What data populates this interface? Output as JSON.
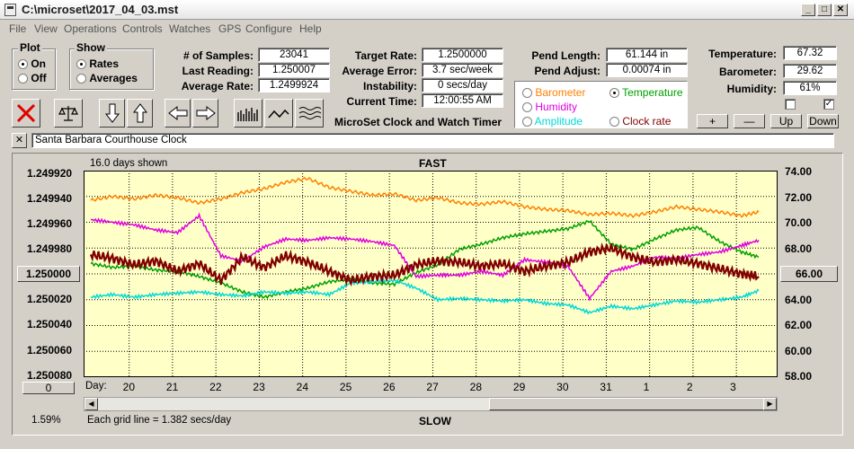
{
  "window": {
    "title": "C:\\microset\\2017_04_03.mst"
  },
  "menu": [
    "File",
    "View",
    "Operations",
    "Controls",
    "Watches",
    "GPS",
    "Configure",
    "Help"
  ],
  "plot_group": {
    "title": "Plot",
    "options": [
      "On",
      "Off"
    ]
  },
  "show_group": {
    "title": "Show",
    "options": [
      "Rates",
      "Averages"
    ]
  },
  "stats": {
    "samples_label": "# of Samples:",
    "samples": "23041",
    "last_reading_label": "Last Reading:",
    "last_reading": "1.250007",
    "average_rate_label": "Average Rate:",
    "average_rate": "1.2499924",
    "target_rate_label": "Target Rate:",
    "target_rate": "1.2500000",
    "average_error_label": "Average Error:",
    "average_error": "3.7 sec/week",
    "instability_label": "Instability:",
    "instability": "0 secs/day",
    "current_time_label": "Current Time:",
    "current_time": "12:00:55 AM",
    "pend_length_label": "Pend Length:",
    "pend_length": "61.144 in",
    "pend_adjust_label": "Pend Adjust:",
    "pend_adjust": "0.00074 in",
    "temperature_label": "Temperature:",
    "temperature": "67.32",
    "barometer_label": "Barometer:",
    "barometer": "29.62",
    "humidity_label": "Humidity:",
    "humidity": "61%"
  },
  "app_caption": "MicroSet Clock and Watch Timer",
  "overlay_options": [
    {
      "label": "Barometer",
      "color": "#ff8000"
    },
    {
      "label": "Temperature",
      "color": "#00a000"
    },
    {
      "label": "Humidity",
      "color": "#e000e0"
    },
    {
      "label": "Amplitude",
      "color": "#00d8d8"
    },
    {
      "label": "Clock rate",
      "color": "#800000"
    }
  ],
  "adjust_buttons": [
    "+",
    "—",
    "Up",
    "Down"
  ],
  "watch_name": "Santa Barbara Courthouse Clock",
  "close_symbol": "✕",
  "chart_data": {
    "type": "line",
    "title": "FAST",
    "bottom_title": "SLOW",
    "days_shown": "16.0 days shown",
    "grid_note": "Each grid line = 1.382 secs/day",
    "percent": "1.59%",
    "day_label": "Day:",
    "left_ticks": [
      "1.249920",
      "1.249940",
      "1.249960",
      "1.249980",
      "1.250000",
      "1.250020",
      "1.250040",
      "1.250060",
      "1.250080"
    ],
    "left_center": "1.250000",
    "left_bottom_button": "0",
    "right_ticks": [
      "74.00",
      "72.00",
      "70.00",
      "68.00",
      "66.00",
      "64.00",
      "62.00",
      "60.00",
      "58.00"
    ],
    "right_center": "66.00",
    "x_days": [
      "20",
      "21",
      "22",
      "23",
      "24",
      "25",
      "26",
      "27",
      "28",
      "29",
      "30",
      "31",
      "1",
      "2",
      "3"
    ],
    "ylim_left": [
      1.24992,
      1.25008
    ],
    "ylim_right": [
      58,
      74
    ],
    "series": [
      {
        "name": "Barometer",
        "color": "#ff8000",
        "x": [
          0,
          0.5,
          1,
          1.5,
          2,
          2.5,
          3,
          3.5,
          4,
          4.5,
          5,
          5.5,
          6,
          6.5,
          7,
          7.5,
          8,
          8.5,
          9,
          9.5,
          10,
          10.5,
          11,
          11.5,
          12,
          12.5,
          13,
          13.5,
          14,
          14.5,
          15,
          15.4
        ],
        "y": [
          71.7,
          72.0,
          71.8,
          72.1,
          71.9,
          71.5,
          71.8,
          72.3,
          72.6,
          73.1,
          73.4,
          72.7,
          72.4,
          72.1,
          72.2,
          71.7,
          71.9,
          71.5,
          71.4,
          71.6,
          71.2,
          71.0,
          70.9,
          70.6,
          70.7,
          70.5,
          70.8,
          71.2,
          71.0,
          70.8,
          70.5,
          70.8
        ]
      },
      {
        "name": "Temperature",
        "color": "#00a000",
        "x": [
          0,
          0.5,
          1,
          1.5,
          2,
          2.5,
          3,
          3.5,
          4,
          4.5,
          5,
          5.5,
          6,
          6.5,
          7,
          7.5,
          8,
          8.5,
          9,
          9.5,
          10,
          10.5,
          11,
          11.5,
          12,
          12.5,
          13,
          13.5,
          14,
          14.5,
          15,
          15.4
        ],
        "y": [
          66.8,
          66.5,
          66.6,
          66.3,
          66.2,
          65.8,
          65.3,
          64.6,
          64.2,
          64.6,
          64.9,
          65.4,
          65.6,
          65.3,
          65.2,
          66.1,
          66.7,
          67.9,
          68.3,
          68.8,
          69.1,
          69.3,
          69.5,
          70.1,
          68.3,
          67.9,
          68.7,
          69.4,
          69.6,
          68.5,
          67.7,
          67.3
        ]
      },
      {
        "name": "Humidity",
        "color": "#e000e0",
        "x": [
          0,
          0.5,
          1,
          1.5,
          2,
          2.5,
          3,
          3.5,
          4,
          4.5,
          5,
          5.5,
          6,
          6.5,
          7,
          7.5,
          8,
          8.5,
          9,
          9.5,
          10,
          10.5,
          11,
          11.5,
          12,
          12.5,
          13,
          13.5,
          14,
          14.5,
          15,
          15.4
        ],
        "y": [
          70.2,
          70.0,
          69.8,
          69.4,
          69.2,
          70.5,
          67.4,
          67.0,
          68.1,
          68.7,
          68.6,
          68.8,
          68.7,
          68.5,
          68.2,
          65.8,
          65.9,
          65.9,
          66.2,
          65.9,
          67.1,
          66.9,
          66.6,
          64.1,
          66.2,
          66.6,
          67.3,
          67.2,
          67.5,
          67.7,
          68.2,
          68.6
        ]
      },
      {
        "name": "Amplitude",
        "color": "#00d8d8",
        "x": [
          0,
          0.5,
          1,
          1.5,
          2,
          2.5,
          3,
          3.5,
          4,
          4.5,
          5,
          5.5,
          6,
          6.5,
          7,
          7.5,
          8,
          8.5,
          9,
          9.5,
          10,
          10.5,
          11,
          11.5,
          12,
          12.5,
          13,
          13.5,
          14,
          14.5,
          15,
          15.4
        ],
        "y": [
          64.2,
          64.4,
          64.2,
          64.4,
          64.5,
          64.6,
          64.4,
          64.3,
          64.6,
          64.5,
          64.6,
          64.4,
          65.3,
          65.4,
          65.5,
          64.9,
          64.0,
          64.1,
          64.0,
          63.9,
          64.0,
          63.7,
          63.6,
          63.0,
          63.5,
          63.3,
          63.6,
          63.9,
          63.8,
          64.0,
          64.2,
          64.7
        ]
      },
      {
        "name": "Clock rate",
        "color": "#800000",
        "x": [
          0,
          0.5,
          1,
          1.5,
          2,
          2.5,
          3,
          3.5,
          4,
          4.5,
          5,
          5.5,
          6,
          6.5,
          7,
          7.5,
          8,
          8.5,
          9,
          9.5,
          10,
          10.5,
          11,
          11.5,
          12,
          12.5,
          13,
          13.5,
          14,
          14.5,
          15,
          15.4
        ],
        "y": [
          67.5,
          67.2,
          66.7,
          67.0,
          66.2,
          66.8,
          65.5,
          67.3,
          66.5,
          67.4,
          66.9,
          66.2,
          65.5,
          65.8,
          65.9,
          66.7,
          67.0,
          66.9,
          66.6,
          66.8,
          66.2,
          66.6,
          66.9,
          67.7,
          68.0,
          67.3,
          66.9,
          67.1,
          66.8,
          66.4,
          66.0,
          65.8
        ]
      }
    ]
  }
}
